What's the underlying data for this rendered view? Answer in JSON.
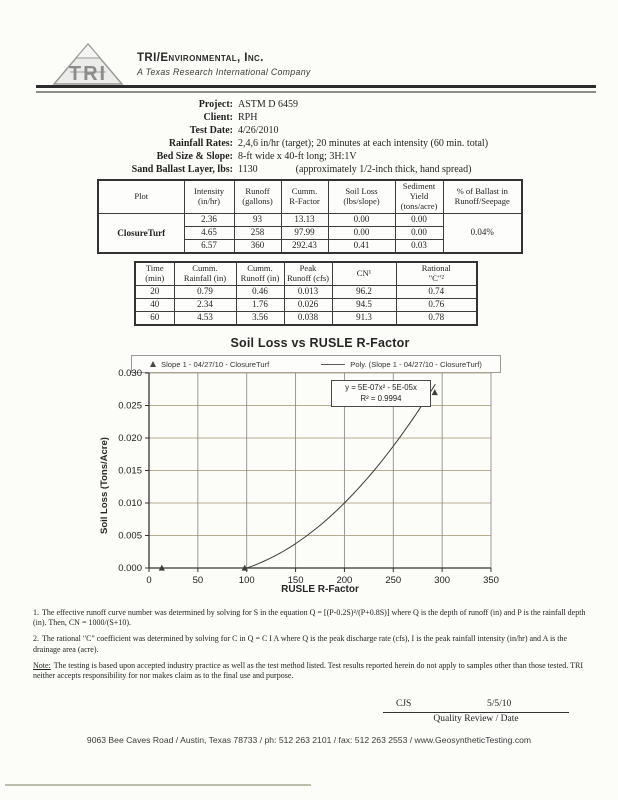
{
  "header": {
    "logo_text": "TRI",
    "company": "TRI/Environmental, Inc.",
    "tagline": "A Texas Research International Company"
  },
  "project_info": {
    "rows": [
      {
        "label": "Project:",
        "value": "ASTM D 6459"
      },
      {
        "label": "Client:",
        "value": "RPH"
      },
      {
        "label": "Test Date:",
        "value": "4/26/2010"
      },
      {
        "label": "Rainfall Rates:",
        "value": "2,4,6 in/hr (target); 20 minutes at each intensity (60 min. total)"
      },
      {
        "label": "Bed Size & Slope:",
        "value": "8-ft wide x 40-ft long; 3H:1V"
      },
      {
        "label": "Sand Ballast Layer, lbs:",
        "value": "1130",
        "note": "(approximately 1/2-inch thick, hand spread)"
      }
    ]
  },
  "ballast_table": {
    "headers": [
      "Plot",
      "Intensity\n(in/hr)",
      "Runoff\n(gallons)",
      "Cumm.\nR-Factor",
      "Soil Loss\n(lbs/slope)",
      "Sediment\nYield\n(tons/acre)",
      "% of Ballast in\nRunoff/Seepage"
    ],
    "plot_name": "ClosureTurf",
    "ballast_pct": "0.04%",
    "rows": [
      [
        "2.36",
        "93",
        "13.13",
        "0.00",
        "0.00"
      ],
      [
        "4.65",
        "258",
        "97.99",
        "0.00",
        "0.00"
      ],
      [
        "6.57",
        "360",
        "292.43",
        "0.41",
        "0.03"
      ]
    ]
  },
  "runoff_table": {
    "headers": [
      "Time\n(min)",
      "Cumm.\nRainfall (in)",
      "Cumm.\nRunoff (in)",
      "Peak\nRunoff (cfs)",
      "CN¹",
      "Rational\n\"C\"²"
    ],
    "rows": [
      [
        "20",
        "0.79",
        "0.46",
        "0.013",
        "96.2",
        "0.74"
      ],
      [
        "40",
        "2.34",
        "1.76",
        "0.026",
        "94.5",
        "0.76"
      ],
      [
        "60",
        "4.53",
        "3.56",
        "0.038",
        "91.3",
        "0.78"
      ]
    ]
  },
  "chart_data": {
    "type": "scatter",
    "title": "Soil Loss vs RUSLE R-Factor",
    "xlabel": "RUSLE R-Factor",
    "ylabel": "Soil Loss (Tons/Acre)",
    "xlim": [
      0,
      350
    ],
    "ylim": [
      0,
      0.03
    ],
    "x_ticks": [
      0,
      50,
      100,
      150,
      200,
      250,
      300,
      350
    ],
    "y_ticks": [
      0,
      0.005,
      0.01,
      0.015,
      0.02,
      0.025,
      0.03
    ],
    "grid": true,
    "legend_position": "top",
    "series": [
      {
        "name": "Slope 1 - 04/27/10 - ClosureTurf",
        "type": "scatter",
        "marker": "triangle",
        "points": [
          [
            13.13,
            0.0
          ],
          [
            97.99,
            0.0
          ],
          [
            292.43,
            0.027
          ]
        ]
      },
      {
        "name": "Poly. (Slope 1 - 04/27/10 - ClosureTurf)",
        "type": "poly-trendline",
        "coeff_a": 5e-07,
        "coeff_b": -5e-05,
        "x_start": 13,
        "x_end": 293
      }
    ],
    "annotation": {
      "line1": "y = 5E-07x² - 5E-05x",
      "line2": "R² = 0.9994"
    }
  },
  "footnotes": [
    {
      "prefix": "1.",
      "text": "The effective runoff curve number was determined by solving for S in the equation Q = [(P-0.2S)²/(P+0.8S)] where Q is the depth of runoff (in) and P is the rainfall depth (in).  Then, CN = 1000/(S+10)."
    },
    {
      "prefix": "2.",
      "text": "The rational \"C\" coefficient was determined by solving for C in Q = C I A where Q is the peak discharge rate (cfs), I is the peak rainfall intensity (in/hr) and A is the drainage area (acre)."
    },
    {
      "prefix": "Note:",
      "text": "The testing is based upon accepted industry practice as well as the test method listed.  Test results reported herein do not apply to samples other than those tested.  TRI neither accepts responsibility for nor makes claim as to the final use and purpose."
    }
  ],
  "signature": {
    "initials": "CJS",
    "date": "5/5/10",
    "caption": "Quality Review / Date"
  },
  "footer": {
    "address": "9063 Bee Caves Road / Austin, Texas 78733 / ph: 512 263 2101 / fax: 512 263 2553 / www.GeosyntheticTesting.com"
  }
}
